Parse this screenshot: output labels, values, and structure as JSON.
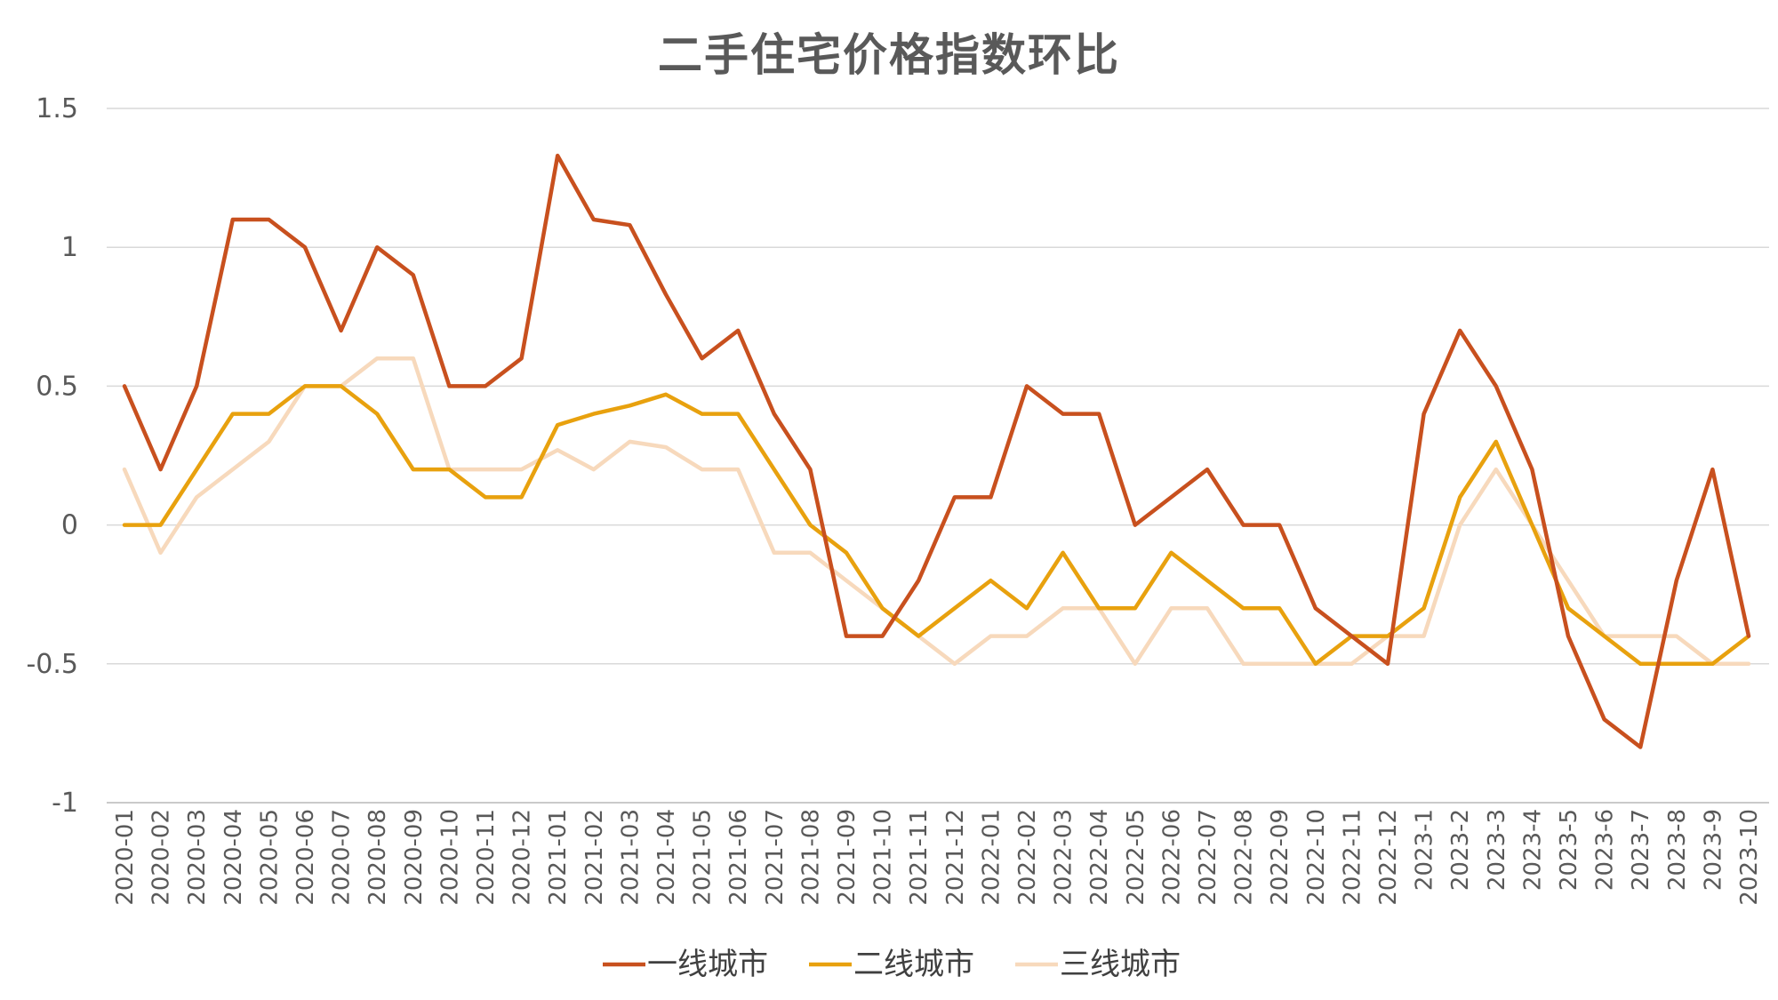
{
  "chart_data": {
    "type": "line",
    "title": "二手住宅价格指数环比",
    "xlabel": "",
    "ylabel": "",
    "ylim": [
      -1,
      1.5
    ],
    "yticks": [
      "1.5",
      "1",
      "0.5",
      "0",
      "-0.5",
      "-1"
    ],
    "ytick_values": [
      1.5,
      1,
      0.5,
      0,
      -0.5,
      -1
    ],
    "grid": true,
    "legend": "bottom",
    "categories": [
      "2020-01",
      "2020-02",
      "2020-03",
      "2020-04",
      "2020-05",
      "2020-06",
      "2020-07",
      "2020-08",
      "2020-09",
      "2020-10",
      "2020-11",
      "2020-12",
      "2021-01",
      "2021-02",
      "2021-03",
      "2021-04",
      "2021-05",
      "2021-06",
      "2021-07",
      "2021-08",
      "2021-09",
      "2021-10",
      "2021-11",
      "2021-12",
      "2022-01",
      "2022-02",
      "2022-03",
      "2022-04",
      "2022-05",
      "2022-06",
      "2022-07",
      "2022-08",
      "2022-09",
      "2022-10",
      "2022-11",
      "2022-12",
      "2023-1",
      "2023-2",
      "2023-3",
      "2023-4",
      "2023-5",
      "2023-6",
      "2023-7",
      "2023-8",
      "2023-9",
      "2023-10"
    ],
    "series": [
      {
        "name": "一线城市",
        "color": "#C8501E",
        "values": [
          0.5,
          0.2,
          0.5,
          1.1,
          1.1,
          1.0,
          0.7,
          1.0,
          0.9,
          0.5,
          0.5,
          0.6,
          1.33,
          1.1,
          1.08,
          0.83,
          0.6,
          0.7,
          0.4,
          0.2,
          -0.4,
          -0.4,
          -0.2,
          0.1,
          0.1,
          0.5,
          0.4,
          0.4,
          0.0,
          0.1,
          0.2,
          0.0,
          0.0,
          -0.3,
          -0.4,
          -0.5,
          0.4,
          0.7,
          0.5,
          0.2,
          -0.4,
          -0.7,
          -0.8,
          -0.2,
          0.2,
          -0.4
        ]
      },
      {
        "name": "二线城市",
        "color": "#E8A10E",
        "values": [
          0.0,
          0.0,
          0.2,
          0.4,
          0.4,
          0.5,
          0.5,
          0.4,
          0.2,
          0.2,
          0.1,
          0.1,
          0.36,
          0.4,
          0.43,
          0.47,
          0.4,
          0.4,
          0.2,
          0.0,
          -0.1,
          -0.3,
          -0.4,
          -0.3,
          -0.2,
          -0.3,
          -0.1,
          -0.3,
          -0.3,
          -0.1,
          -0.2,
          -0.3,
          -0.3,
          -0.5,
          -0.4,
          -0.4,
          -0.3,
          0.1,
          0.3,
          0.0,
          -0.3,
          -0.4,
          -0.5,
          -0.5,
          -0.5,
          -0.4
        ]
      },
      {
        "name": "三线城市",
        "color": "#F7D9BC",
        "values": [
          0.2,
          -0.1,
          0.1,
          0.2,
          0.3,
          0.5,
          0.5,
          0.6,
          0.6,
          0.2,
          0.2,
          0.2,
          0.27,
          0.2,
          0.3,
          0.28,
          0.2,
          0.2,
          -0.1,
          -0.1,
          -0.2,
          -0.3,
          -0.4,
          -0.5,
          -0.4,
          -0.4,
          -0.3,
          -0.3,
          -0.5,
          -0.3,
          -0.3,
          -0.5,
          -0.5,
          -0.5,
          -0.5,
          -0.4,
          -0.4,
          0.0,
          0.2,
          0.0,
          -0.2,
          -0.4,
          -0.4,
          -0.4,
          -0.5,
          -0.5
        ]
      }
    ]
  }
}
